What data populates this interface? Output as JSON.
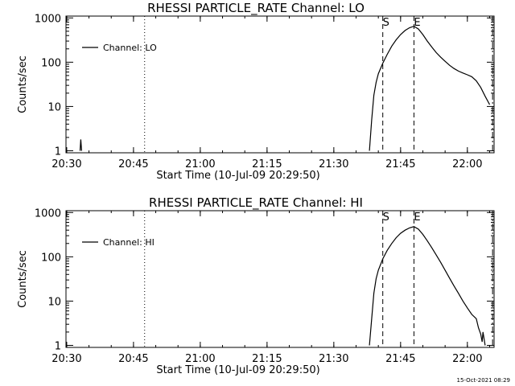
{
  "stamp": "15-Oct-2021 08:29",
  "colors": {
    "background": "#ffffff",
    "foreground": "#000000"
  },
  "chart_data": [
    {
      "type": "line",
      "title": "RHESSI PARTICLE_RATE Channel: LO",
      "xlabel": "Start Time (10-Jul-09 20:29:50)",
      "ylabel": "Counts/sec",
      "y_scale": "log",
      "xlim": [
        "20:29:50",
        "22:06:00"
      ],
      "ylim": [
        0.9,
        1100
      ],
      "x_ticks": [
        "20:30",
        "20:45",
        "21:00",
        "21:15",
        "21:30",
        "21:45",
        "22:00"
      ],
      "y_ticks": [
        "1",
        "10",
        "100",
        "1000"
      ],
      "legend": {
        "position": "top-left",
        "entries": [
          "Channel: LO"
        ]
      },
      "grid": false,
      "series": [
        {
          "name": "Channel: LO",
          "points": [
            [
              "20:33:00",
              1.0
            ],
            [
              "20:33:10",
              1.8
            ],
            [
              "20:33:20",
              1.0
            ],
            [
              "21:38:00",
              1.0
            ],
            [
              "21:38:30",
              5
            ],
            [
              "21:39:00",
              18
            ],
            [
              "21:39:30",
              35
            ],
            [
              "21:40:00",
              55
            ],
            [
              "21:41:00",
              95
            ],
            [
              "21:42:00",
              150
            ],
            [
              "21:43:00",
              230
            ],
            [
              "21:44:00",
              320
            ],
            [
              "21:45:00",
              420
            ],
            [
              "21:46:00",
              520
            ],
            [
              "21:47:00",
              600
            ],
            [
              "21:48:00",
              650
            ],
            [
              "21:49:00",
              560
            ],
            [
              "21:50:00",
              420
            ],
            [
              "21:51:00",
              300
            ],
            [
              "21:52:00",
              220
            ],
            [
              "21:53:00",
              165
            ],
            [
              "21:54:00",
              130
            ],
            [
              "21:55:00",
              105
            ],
            [
              "21:56:00",
              85
            ],
            [
              "21:57:00",
              72
            ],
            [
              "21:58:00",
              63
            ],
            [
              "21:59:00",
              57
            ],
            [
              "22:00:00",
              52
            ],
            [
              "22:01:00",
              47
            ],
            [
              "22:02:00",
              38
            ],
            [
              "22:03:00",
              27
            ],
            [
              "22:04:00",
              17
            ],
            [
              "22:05:00",
              11
            ]
          ]
        }
      ],
      "vlines": [
        {
          "x": "20:47:30",
          "style": "dotted"
        },
        {
          "x": "21:41:00",
          "style": "dashed",
          "label": "S"
        },
        {
          "x": "21:48:00",
          "style": "dashed",
          "label": "E"
        },
        {
          "x": "22:05:40",
          "style": "dashdot"
        }
      ]
    },
    {
      "type": "line",
      "title": "RHESSI PARTICLE_RATE Channel: HI",
      "xlabel": "Start Time (10-Jul-09 20:29:50)",
      "ylabel": "Counts/sec",
      "y_scale": "log",
      "xlim": [
        "20:29:50",
        "22:06:00"
      ],
      "ylim": [
        0.9,
        1100
      ],
      "x_ticks": [
        "20:30",
        "20:45",
        "21:00",
        "21:15",
        "21:30",
        "21:45",
        "22:00"
      ],
      "y_ticks": [
        "1",
        "10",
        "100",
        "1000"
      ],
      "legend": {
        "position": "top-left",
        "entries": [
          "Channel: HI"
        ]
      },
      "grid": false,
      "series": [
        {
          "name": "Channel: HI",
          "points": [
            [
              "21:38:00",
              1.0
            ],
            [
              "21:38:30",
              4
            ],
            [
              "21:39:00",
              15
            ],
            [
              "21:39:30",
              32
            ],
            [
              "21:40:00",
              50
            ],
            [
              "21:41:00",
              90
            ],
            [
              "21:42:00",
              140
            ],
            [
              "21:43:00",
              200
            ],
            [
              "21:44:00",
              270
            ],
            [
              "21:45:00",
              340
            ],
            [
              "21:46:00",
              400
            ],
            [
              "21:47:00",
              450
            ],
            [
              "21:48:00",
              480
            ],
            [
              "21:49:00",
              420
            ],
            [
              "21:50:00",
              320
            ],
            [
              "21:51:00",
              230
            ],
            [
              "21:52:00",
              160
            ],
            [
              "21:53:00",
              110
            ],
            [
              "21:54:00",
              75
            ],
            [
              "21:55:00",
              50
            ],
            [
              "21:56:00",
              33
            ],
            [
              "21:57:00",
              22
            ],
            [
              "21:58:00",
              15
            ],
            [
              "21:59:00",
              10
            ],
            [
              "22:00:00",
              7
            ],
            [
              "22:01:00",
              5
            ],
            [
              "22:02:00",
              4
            ],
            [
              "22:02:30",
              2.5
            ],
            [
              "22:03:00",
              1.8
            ],
            [
              "22:03:20",
              1.2
            ],
            [
              "22:03:30",
              2
            ],
            [
              "22:04:00",
              1.0
            ]
          ]
        }
      ],
      "vlines": [
        {
          "x": "20:47:30",
          "style": "dotted"
        },
        {
          "x": "21:41:00",
          "style": "dashed",
          "label": "S"
        },
        {
          "x": "21:48:00",
          "style": "dashed",
          "label": "E"
        },
        {
          "x": "22:05:40",
          "style": "dashdot"
        }
      ]
    }
  ]
}
